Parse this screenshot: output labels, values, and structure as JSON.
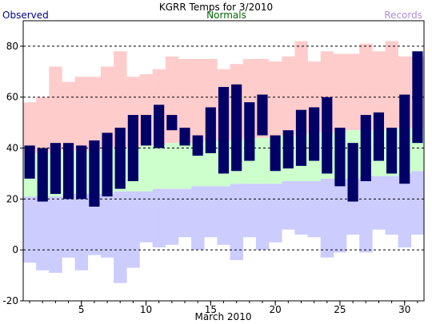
{
  "chart_data": {
    "type": "bar",
    "title": "KGRR Temps for 3/2010",
    "xlabel": "March 2010",
    "ylabel": "",
    "legend": {
      "observed": "Observed",
      "normals": "Normals",
      "records": "Records"
    },
    "colors": {
      "observed": "#000066",
      "normals": "#ccffcc",
      "record_high": "#ffcccc",
      "record_low": "#ccccff",
      "observed_label": "#000080",
      "normals_label": "#006600",
      "records_label": "#b08fd8",
      "gridline": "#000000"
    },
    "ylim": [
      -20,
      90
    ],
    "xlim": [
      0.5,
      31.5
    ],
    "y_ticks": [
      -20,
      0,
      20,
      40,
      60,
      80
    ],
    "x_ticks": [
      5,
      10,
      15,
      20,
      25,
      30
    ],
    "days": [
      1,
      2,
      3,
      4,
      5,
      6,
      7,
      8,
      9,
      10,
      11,
      12,
      13,
      14,
      15,
      16,
      17,
      18,
      19,
      20,
      21,
      22,
      23,
      24,
      25,
      26,
      27,
      28,
      29,
      30,
      31
    ],
    "observed_high": [
      41,
      40,
      42,
      42,
      41,
      43,
      46,
      48,
      53,
      53,
      57,
      53,
      48,
      45,
      56,
      64,
      65,
      58,
      61,
      45,
      47,
      55,
      56,
      60,
      48,
      42,
      53,
      54,
      48,
      61,
      78
    ],
    "observed_low": [
      28,
      19,
      22,
      20,
      20,
      17,
      21,
      24,
      27,
      41,
      40,
      47,
      41,
      37,
      38,
      30,
      31,
      35,
      45,
      31,
      32,
      33,
      35,
      30,
      25,
      19,
      27,
      35,
      30,
      26,
      42
    ],
    "normal_high": [
      38,
      38,
      39,
      39,
      39,
      39,
      40,
      40,
      40,
      41,
      41,
      42,
      42,
      42,
      43,
      43,
      43,
      44,
      44,
      45,
      45,
      45,
      46,
      46,
      46,
      47,
      47,
      47,
      48,
      48,
      48
    ],
    "normal_low": [
      21,
      21,
      21,
      22,
      22,
      22,
      22,
      23,
      23,
      23,
      24,
      24,
      24,
      25,
      25,
      25,
      26,
      26,
      26,
      26,
      27,
      27,
      27,
      28,
      28,
      28,
      29,
      29,
      29,
      30,
      31
    ],
    "record_high": [
      58,
      60,
      72,
      66,
      68,
      68,
      72,
      78,
      68,
      69,
      71,
      76,
      75,
      75,
      75,
      71,
      73,
      75,
      75,
      74,
      76,
      82,
      74,
      78,
      77,
      77,
      81,
      78,
      82,
      76,
      76
    ],
    "record_low": [
      -5,
      -8,
      -9,
      -3,
      -8,
      -2,
      -3,
      -13,
      -7,
      3,
      1,
      2,
      5,
      0,
      5,
      2,
      -4,
      5,
      0,
      3,
      8,
      6,
      5,
      -3,
      -1,
      6,
      -1,
      8,
      6,
      1,
      6
    ]
  }
}
